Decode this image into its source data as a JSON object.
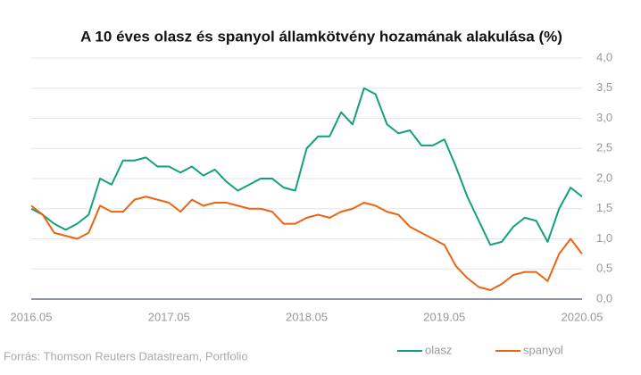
{
  "chart_data": {
    "type": "line",
    "title": "A 10 éves olasz és spanyol államkötvény hozamának alakulása (%)",
    "source": "Forrás: Thomson Reuters Datastream, Portfolio",
    "x": [
      "2016.05",
      "2016.06",
      "2016.07",
      "2016.08",
      "2016.09",
      "2016.10",
      "2016.11",
      "2016.12",
      "2017.01",
      "2017.02",
      "2017.03",
      "2017.04",
      "2017.05",
      "2017.06",
      "2017.07",
      "2017.08",
      "2017.09",
      "2017.10",
      "2017.11",
      "2017.12",
      "2018.01",
      "2018.02",
      "2018.03",
      "2018.04",
      "2018.05",
      "2018.06",
      "2018.07",
      "2018.08",
      "2018.09",
      "2018.10",
      "2018.11",
      "2018.12",
      "2019.01",
      "2019.02",
      "2019.03",
      "2019.04",
      "2019.05",
      "2019.06",
      "2019.07",
      "2019.08",
      "2019.09",
      "2019.10",
      "2019.11",
      "2019.12",
      "2020.01",
      "2020.02",
      "2020.03",
      "2020.04",
      "2020.05"
    ],
    "xticks": [
      "2016.05",
      "2017.05",
      "2018.05",
      "2019.05",
      "2020.05"
    ],
    "series": [
      {
        "name": "olasz",
        "color": "#13a07c",
        "values": [
          1.5,
          1.4,
          1.25,
          1.15,
          1.25,
          1.4,
          2.0,
          1.9,
          2.3,
          2.3,
          2.35,
          2.2,
          2.2,
          2.1,
          2.2,
          2.05,
          2.15,
          1.95,
          1.8,
          1.9,
          2.0,
          2.0,
          1.85,
          1.8,
          2.5,
          2.7,
          2.7,
          3.1,
          2.9,
          3.5,
          3.4,
          2.9,
          2.75,
          2.8,
          2.55,
          2.55,
          2.65,
          2.2,
          1.7,
          1.3,
          0.9,
          0.95,
          1.2,
          1.35,
          1.3,
          0.95,
          1.5,
          1.85,
          1.7
        ]
      },
      {
        "name": "spanyol",
        "color": "#ec6312",
        "values": [
          1.55,
          1.4,
          1.1,
          1.05,
          1.0,
          1.1,
          1.55,
          1.45,
          1.45,
          1.65,
          1.7,
          1.65,
          1.6,
          1.45,
          1.65,
          1.55,
          1.6,
          1.6,
          1.55,
          1.5,
          1.5,
          1.45,
          1.25,
          1.25,
          1.35,
          1.4,
          1.35,
          1.45,
          1.5,
          1.6,
          1.55,
          1.45,
          1.4,
          1.2,
          1.1,
          1.0,
          0.9,
          0.55,
          0.35,
          0.2,
          0.15,
          0.25,
          0.4,
          0.45,
          0.45,
          0.3,
          0.75,
          1.0,
          0.75
        ]
      }
    ],
    "ylim": [
      0,
      4
    ],
    "yticks": [
      {
        "value": 0,
        "label": "0,0"
      },
      {
        "value": 0.5,
        "label": "0,5"
      },
      {
        "value": 1,
        "label": "1,0"
      },
      {
        "value": 1.5,
        "label": "1,5"
      },
      {
        "value": 2,
        "label": "2,0"
      },
      {
        "value": 2.5,
        "label": "2,5"
      },
      {
        "value": 3,
        "label": "3,0"
      },
      {
        "value": 3.5,
        "label": "3,5"
      },
      {
        "value": 4,
        "label": "4,0"
      }
    ],
    "grid": true,
    "legend": "bottom-right"
  }
}
